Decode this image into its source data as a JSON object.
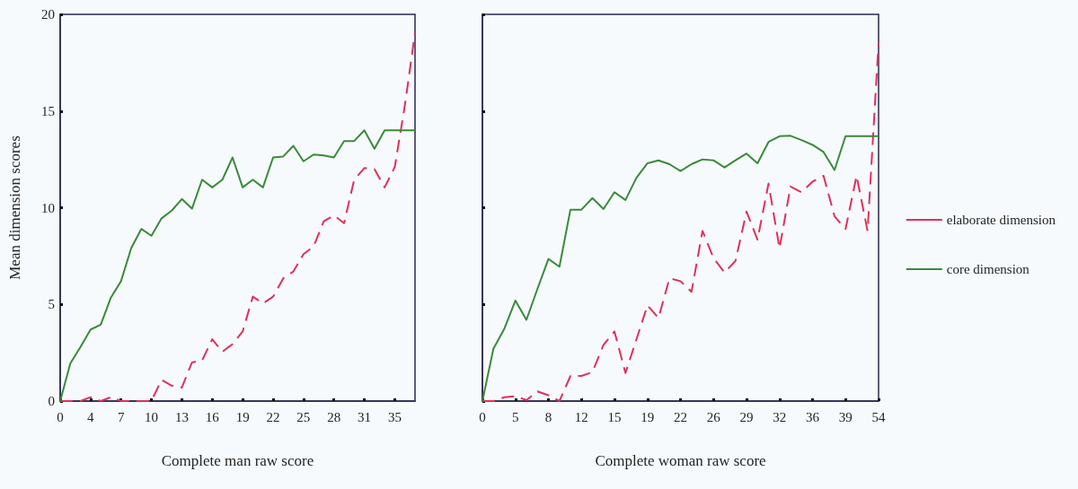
{
  "chart_data": [
    {
      "type": "line",
      "xlabel": "Complete man raw score",
      "ylabel": "Mean dimension scores",
      "categories": [
        "0",
        null,
        null,
        "4",
        null,
        null,
        "7",
        null,
        null,
        "10",
        null,
        null,
        "13",
        null,
        null,
        "16",
        null,
        null,
        "19",
        null,
        null,
        "22",
        null,
        null,
        "25",
        null,
        null,
        "28",
        null,
        null,
        "31",
        null,
        null,
        "35",
        null,
        null
      ],
      "ylim": [
        0,
        20
      ],
      "yticks": [
        0,
        5,
        10,
        15,
        20
      ],
      "grid": false,
      "marker": "none",
      "legend": false,
      "series": [
        {
          "color": "#e0305a",
          "line_style": "dashed",
          "values": [
            0,
            0,
            0,
            0.2,
            0,
            0.2,
            0,
            0,
            0,
            0,
            1.1,
            0.8,
            0.7,
            2.0,
            2.1,
            3.2,
            2.55,
            2.95,
            3.6,
            5.4,
            5.05,
            5.4,
            6.35,
            6.7,
            7.6,
            8.0,
            9.3,
            9.6,
            9.2,
            11.45,
            12.05,
            12.0,
            11.05,
            12.1,
            15.3,
            19.05
          ]
        },
        {
          "color": "#3a8a3a",
          "line_style": "solid",
          "values": [
            0,
            1.95,
            2.8,
            3.7,
            3.95,
            5.35,
            6.2,
            7.9,
            8.9,
            8.55,
            9.45,
            9.85,
            10.45,
            9.95,
            11.45,
            11.05,
            11.45,
            12.6,
            11.05,
            11.45,
            11.05,
            12.6,
            12.65,
            13.2,
            12.4,
            12.75,
            12.7,
            12.6,
            13.45,
            13.45,
            14.0,
            13.05,
            14.0,
            14.0,
            14.0,
            14.0
          ]
        }
      ]
    },
    {
      "type": "line",
      "xlabel": "Complete woman raw score",
      "categories": [
        "0",
        null,
        null,
        "5",
        null,
        null,
        "8",
        null,
        null,
        "12",
        null,
        null,
        "15",
        null,
        null,
        "19",
        null,
        null,
        "22",
        null,
        null,
        "26",
        null,
        null,
        "29",
        null,
        null,
        "32",
        null,
        null,
        "36",
        null,
        null,
        "39",
        null,
        null,
        "54"
      ],
      "ylim": [
        0,
        20
      ],
      "yticks": [
        {
          "value": 0,
          "label": null
        },
        {
          "value": 5,
          "label": null
        },
        {
          "value": 10,
          "label": null
        },
        {
          "value": 15,
          "label": null
        },
        {
          "value": 20,
          "label": null
        }
      ],
      "tick_labels": "x",
      "grid": false,
      "marker": "none",
      "legend": "right",
      "series": [
        {
          "name": "elaborate dimension",
          "color": "#e0305a",
          "line_style": "dashed",
          "values": [
            0,
            0,
            0.2,
            0.25,
            0.05,
            0.5,
            0.3,
            0,
            1.3,
            1.3,
            1.5,
            2.9,
            3.6,
            1.45,
            3.2,
            4.95,
            4.3,
            6.35,
            6.2,
            5.65,
            8.8,
            7.4,
            6.65,
            7.25,
            9.8,
            8.35,
            11.25,
            7.9,
            11.1,
            10.8,
            11.35,
            11.65,
            9.55,
            8.9,
            11.65,
            8.8,
            18.55
          ]
        },
        {
          "name": "core dimension",
          "color": "#3a8a3a",
          "line_style": "solid",
          "values": [
            0,
            2.7,
            3.75,
            5.2,
            4.2,
            5.8,
            7.35,
            6.95,
            9.9,
            9.9,
            10.5,
            9.93,
            10.8,
            10.4,
            11.55,
            12.3,
            12.45,
            12.25,
            11.9,
            12.25,
            12.5,
            12.45,
            12.08,
            12.45,
            12.8,
            12.3,
            13.4,
            13.7,
            13.72,
            13.5,
            13.25,
            12.88,
            11.95,
            13.7,
            13.7,
            13.7,
            13.7
          ]
        }
      ]
    }
  ]
}
